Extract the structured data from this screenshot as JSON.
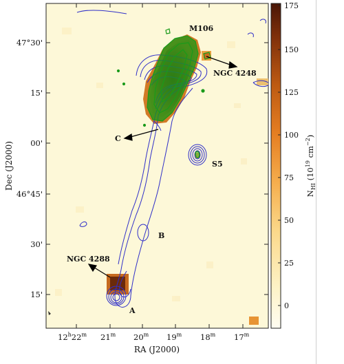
{
  "axes": {
    "xlabel": "RA (J2000)",
    "ylabel": "Dec (J2000)",
    "x_ticks": [
      {
        "main": "12",
        "sup1": "h",
        "mid": "22",
        "sup2": "m"
      },
      {
        "main": "21",
        "sup2": "m"
      },
      {
        "main": "20",
        "sup2": "m"
      },
      {
        "main": "19",
        "sup2": "m"
      },
      {
        "main": "18",
        "sup2": "m"
      },
      {
        "main": "17",
        "sup2": "m"
      }
    ],
    "y_ticks": [
      "47°30'",
      "15'",
      "00'",
      "46°45'",
      "30'",
      "15'"
    ]
  },
  "colorbar": {
    "label": "N",
    "label_sub": "HI",
    "label_unit_pre": " (10",
    "label_unit_sup": "19",
    "label_unit_post": " cm",
    "label_unit_sup2": "−2",
    "label_unit_end": ")",
    "ticks": [
      "175",
      "150",
      "125",
      "100",
      "75",
      "50",
      "25",
      "0"
    ]
  },
  "annotations": {
    "m106": "M106",
    "ngc4248": "NGC 4248",
    "c": "C",
    "s5": "S5",
    "b": "B",
    "ngc4288": "NGC 4288",
    "a": "A"
  },
  "colors": {
    "background": "#fdf8d8",
    "contour_blue": "#2f2fc8",
    "contour_green": "#1a9a1a",
    "emission_dark": "#6a2a0a",
    "emission_mid": "#b2541a",
    "emission_light": "#e59a3a"
  }
}
